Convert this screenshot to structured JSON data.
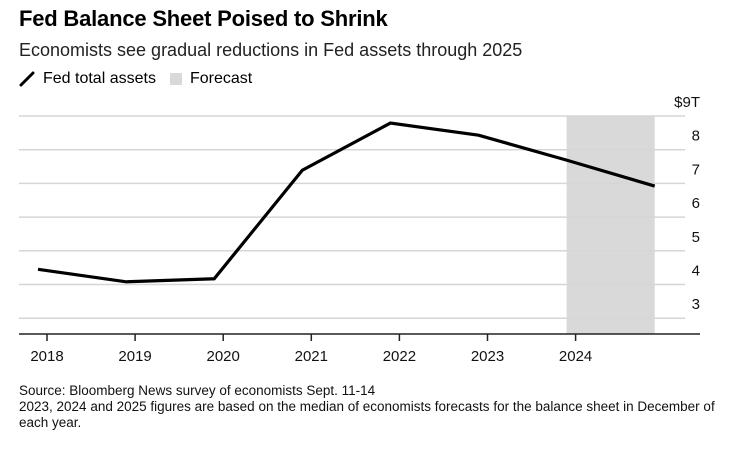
{
  "header": {
    "title": "Fed Balance Sheet Poised to Shrink",
    "subtitle": "Economists see gradual reductions in Fed assets through 2025"
  },
  "legend": {
    "items": [
      {
        "label": "Fed total assets",
        "icon": "line-icon",
        "color": "#000000"
      },
      {
        "label": "Forecast",
        "icon": "swatch-icon",
        "color": "#d9d9d9"
      }
    ]
  },
  "footer": {
    "source": "Source: Bloomberg News survey of economists Sept. 11-14",
    "note": "2023, 2024 and 2025 figures are based on the median of economists forecasts for the balance sheet in December of each year."
  },
  "chart_data": {
    "type": "line",
    "title": "Fed Balance Sheet Poised to Shrink",
    "subtitle": "Economists see gradual reductions in Fed assets through 2025",
    "xlabel": "",
    "ylabel": "",
    "x_ticks": [
      "2018",
      "2019",
      "2020",
      "2021",
      "2022",
      "2023",
      "2024"
    ],
    "y_ticks": [
      {
        "value": 9,
        "label": "$9T"
      },
      {
        "value": 8,
        "label": "8"
      },
      {
        "value": 7,
        "label": "7"
      },
      {
        "value": 6,
        "label": "6"
      },
      {
        "value": 5,
        "label": "5"
      },
      {
        "value": 4,
        "label": "4"
      },
      {
        "value": 3,
        "label": "3"
      }
    ],
    "ylim": [
      2.5,
      9
    ],
    "grid": true,
    "y_axis_side": "right",
    "legend_position": "top-left",
    "series": [
      {
        "name": "Fed total assets",
        "color": "#000000",
        "x": [
          "Dec 2017",
          "Dec 2018",
          "Dec 2019",
          "Dec 2020",
          "Dec 2021",
          "Dec 2022",
          "Dec 2023",
          "Dec 2024"
        ],
        "values": [
          4.45,
          4.08,
          4.17,
          7.39,
          8.79,
          8.43,
          7.69,
          6.92
        ]
      }
    ],
    "forecast_band": {
      "label": "Forecast",
      "from": "Dec 2023",
      "to": "Dec 2024",
      "color": "#d9d9d9"
    }
  }
}
